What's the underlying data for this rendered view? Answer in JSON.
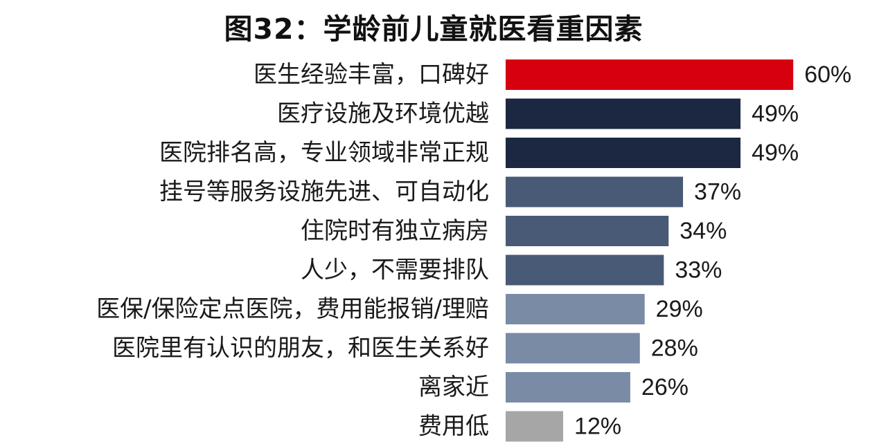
{
  "chart_data": {
    "type": "bar",
    "orientation": "horizontal",
    "title": "图32：学龄前儿童就医看重因素",
    "xlabel": "",
    "ylabel": "",
    "xlim": [
      0,
      60
    ],
    "grid": false,
    "legend": "none",
    "unit": "%",
    "categories": [
      "医生经验丰富，口碑好",
      "医疗设施及环境优越",
      "医院排名高，专业领域非常正规",
      "挂号等服务设施先进、可自动化",
      "住院时有独立病房",
      "人少，不需要排队",
      "医保/保险定点医院，费用能报销/理赔",
      "医院里有认识的朋友，和医生关系好",
      "离家近",
      "费用低"
    ],
    "values": [
      60,
      49,
      49,
      37,
      34,
      33,
      29,
      28,
      26,
      12
    ],
    "value_labels": [
      "60%",
      "49%",
      "49%",
      "37%",
      "34%",
      "33%",
      "29%",
      "28%",
      "26%",
      "12%"
    ],
    "bar_colors": [
      "#d7000f",
      "#1c2841",
      "#1c2841",
      "#485a76",
      "#485a76",
      "#485a76",
      "#7a8ba6",
      "#7a8ba6",
      "#7a8ba6",
      "#a6a6a6"
    ]
  }
}
